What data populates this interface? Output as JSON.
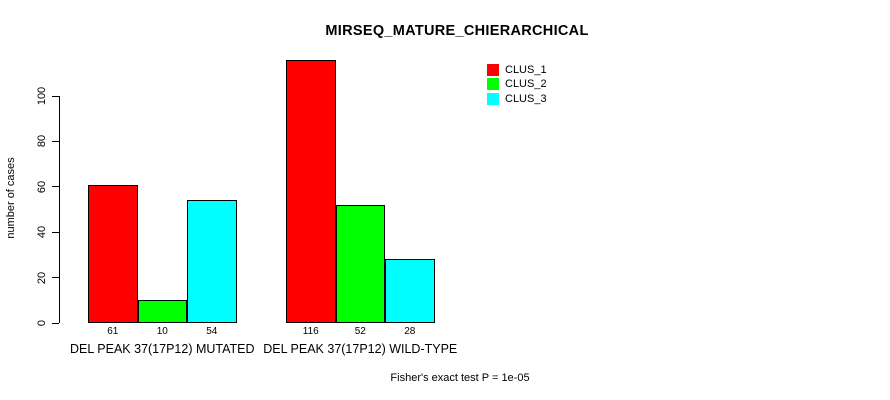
{
  "title": "MIRSEQ_MATURE_CHIERARCHICAL",
  "footer": "Fisher's exact test P = 1e-05",
  "chart_data": {
    "type": "bar",
    "title": "MIRSEQ_MATURE_CHIERARCHICAL",
    "categories": [
      "DEL PEAK 37(17P12) MUTATED",
      "DEL PEAK 37(17P12) WILD-TYPE"
    ],
    "series": [
      {
        "name": "CLUS_1",
        "color": "#ff0000",
        "values": [
          61,
          116
        ]
      },
      {
        "name": "CLUS_2",
        "color": "#00ff00",
        "values": [
          10,
          52
        ]
      },
      {
        "name": "CLUS_3",
        "color": "#00ffff",
        "values": [
          54,
          28
        ]
      }
    ],
    "xlabel": "",
    "ylabel": "number of cases",
    "yticks": [
      0,
      20,
      40,
      60,
      80,
      100
    ],
    "ylim": [
      0,
      116
    ],
    "bar_value_labels": true,
    "grid": false,
    "legend_position": "top-right",
    "bar_border_color": "#000000",
    "annotation": "Fisher's exact test P = 1e-05"
  }
}
